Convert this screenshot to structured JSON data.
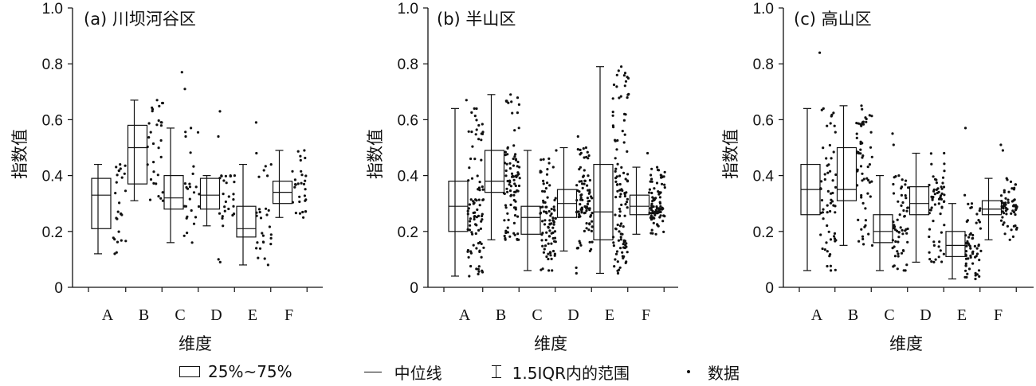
{
  "legend": {
    "box_label": "25%~75%",
    "median_label": "中位线",
    "whisker_label": "1.5IQR内的范围",
    "data_label": "数据"
  },
  "chart_data": [
    {
      "type": "box",
      "title": "(a) 川坝河谷区",
      "xlabel": "维度",
      "ylabel": "指数值",
      "ylim": [
        0,
        1.0
      ],
      "yticks": [
        "0",
        "0.2",
        "0.4",
        "0.6",
        "0.8",
        "1.0"
      ],
      "categories": [
        "A",
        "B",
        "C",
        "D",
        "E",
        "F"
      ],
      "boxes": [
        {
          "q1": 0.21,
          "median": 0.33,
          "q3": 0.39,
          "whisker_low": 0.12,
          "whisker_high": 0.44,
          "n": 25,
          "outliers": []
        },
        {
          "q1": 0.37,
          "median": 0.5,
          "q3": 0.58,
          "whisker_low": 0.31,
          "whisker_high": 0.67,
          "n": 30,
          "outliers": []
        },
        {
          "q1": 0.28,
          "median": 0.32,
          "q3": 0.4,
          "whisker_low": 0.16,
          "whisker_high": 0.57,
          "n": 25,
          "outliers": [
            0.71,
            0.77
          ]
        },
        {
          "q1": 0.28,
          "median": 0.33,
          "q3": 0.39,
          "whisker_low": 0.22,
          "whisker_high": 0.4,
          "n": 25,
          "outliers": [
            0.09,
            0.1,
            0.54,
            0.63
          ]
        },
        {
          "q1": 0.18,
          "median": 0.21,
          "q3": 0.29,
          "whisker_low": 0.08,
          "whisker_high": 0.44,
          "n": 25,
          "outliers": [
            0.48,
            0.59
          ]
        },
        {
          "q1": 0.3,
          "median": 0.34,
          "q3": 0.38,
          "whisker_low": 0.25,
          "whisker_high": 0.49,
          "n": 28,
          "outliers": []
        }
      ]
    },
    {
      "type": "box",
      "title": "(b) 半山区",
      "xlabel": "维度",
      "ylabel": "指数值",
      "ylim": [
        0,
        1.0
      ],
      "yticks": [
        "0",
        "0.2",
        "0.4",
        "0.6",
        "0.8",
        "1.0"
      ],
      "categories": [
        "A",
        "B",
        "C",
        "D",
        "E",
        "F"
      ],
      "boxes": [
        {
          "q1": 0.2,
          "median": 0.29,
          "q3": 0.38,
          "whisker_low": 0.04,
          "whisker_high": 0.64,
          "n": 90,
          "outliers": [
            0.67
          ]
        },
        {
          "q1": 0.34,
          "median": 0.38,
          "q3": 0.49,
          "whisker_low": 0.17,
          "whisker_high": 0.69,
          "n": 90,
          "outliers": []
        },
        {
          "q1": 0.19,
          "median": 0.25,
          "q3": 0.29,
          "whisker_low": 0.06,
          "whisker_high": 0.49,
          "n": 90,
          "outliers": []
        },
        {
          "q1": 0.25,
          "median": 0.3,
          "q3": 0.35,
          "whisker_low": 0.13,
          "whisker_high": 0.5,
          "n": 90,
          "outliers": [
            0.05,
            0.07,
            0.54
          ]
        },
        {
          "q1": 0.17,
          "median": 0.27,
          "q3": 0.44,
          "whisker_low": 0.05,
          "whisker_high": 0.79,
          "n": 110,
          "outliers": []
        },
        {
          "q1": 0.26,
          "median": 0.29,
          "q3": 0.33,
          "whisker_low": 0.19,
          "whisker_high": 0.43,
          "n": 90,
          "outliers": [
            0.48
          ]
        }
      ]
    },
    {
      "type": "box",
      "title": "(c) 高山区",
      "xlabel": "维度",
      "ylabel": "指数值",
      "ylim": [
        0,
        1.0
      ],
      "yticks": [
        "0",
        "0.2",
        "0.4",
        "0.6",
        "0.8",
        "1.0"
      ],
      "categories": [
        "A",
        "B",
        "C",
        "D",
        "E",
        "F"
      ],
      "boxes": [
        {
          "q1": 0.26,
          "median": 0.35,
          "q3": 0.44,
          "whisker_low": 0.06,
          "whisker_high": 0.64,
          "n": 60,
          "outliers": [
            0.84
          ]
        },
        {
          "q1": 0.31,
          "median": 0.35,
          "q3": 0.5,
          "whisker_low": 0.15,
          "whisker_high": 0.65,
          "n": 60,
          "outliers": []
        },
        {
          "q1": 0.16,
          "median": 0.2,
          "q3": 0.26,
          "whisker_low": 0.06,
          "whisker_high": 0.4,
          "n": 60,
          "outliers": [
            0.51,
            0.55
          ]
        },
        {
          "q1": 0.26,
          "median": 0.3,
          "q3": 0.36,
          "whisker_low": 0.09,
          "whisker_high": 0.48,
          "n": 60,
          "outliers": []
        },
        {
          "q1": 0.11,
          "median": 0.15,
          "q3": 0.2,
          "whisker_low": 0.03,
          "whisker_high": 0.3,
          "n": 60,
          "outliers": [
            0.33,
            0.57
          ]
        },
        {
          "q1": 0.26,
          "median": 0.28,
          "q3": 0.31,
          "whisker_low": 0.17,
          "whisker_high": 0.39,
          "n": 60,
          "outliers": [
            0.49,
            0.51
          ]
        }
      ]
    }
  ]
}
